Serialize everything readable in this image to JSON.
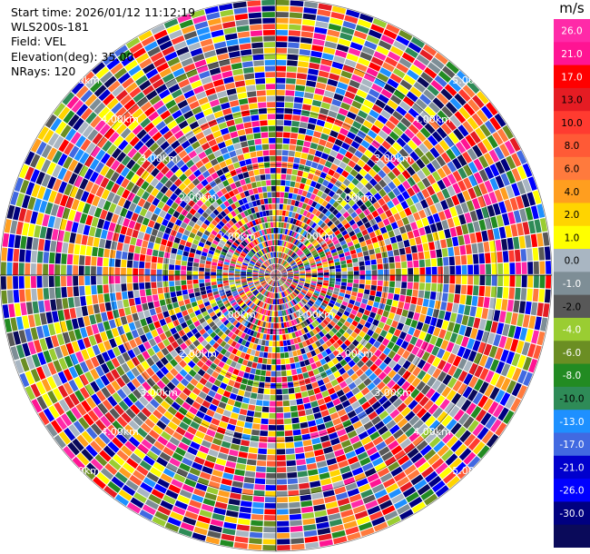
{
  "info": {
    "start_time": "Start time: 2026/01/12 11:12:19",
    "instrument": "WLS200s-181",
    "field": "Field: VEL",
    "elevation": "Elevation(deg): 35.00",
    "nrays": "NRays: 120"
  },
  "colorbar": {
    "unit": "m/s",
    "ticks": [
      "26.0",
      "21.0",
      "17.0",
      "13.0",
      "10.0",
      "8.0",
      "6.0",
      "4.0",
      "2.0",
      "1.0",
      "0.0",
      "-1.0",
      "-2.0",
      "-4.0",
      "-6.0",
      "-8.0",
      "-10.0",
      "-13.0",
      "-17.0",
      "-21.0",
      "-26.0",
      "-30.0"
    ],
    "segment_colors": [
      "#ff2aa8",
      "#ff1493",
      "#ff0000",
      "#e51c23",
      "#ff3b30",
      "#ff5a36",
      "#ff7a3d",
      "#ff9e1f",
      "#ffd400",
      "#ffff00",
      "#a9b6c2",
      "#7e8e96",
      "#585858",
      "#9acd32",
      "#6b8e23",
      "#228b22",
      "#2e8b57",
      "#1e90ff",
      "#4169e1",
      "#0000cd",
      "#0000ff",
      "#000080",
      "#0a0a5a"
    ]
  },
  "chart_data": {
    "type": "ppi",
    "field": "VEL",
    "unit": "m/s",
    "nrays": 120,
    "range_rings_km": [
      1.0,
      2.0,
      3.0,
      4.0,
      5.0
    ],
    "range_ring_labels": [
      "1.00km",
      "2.00km",
      "3.00km",
      "4.00km",
      "5.00km"
    ],
    "color_levels": [
      -30,
      -26,
      -21,
      -17,
      -13,
      -10,
      -8,
      -6,
      -4,
      -2,
      -1,
      0,
      1,
      2,
      4,
      6,
      8,
      10,
      13,
      17,
      21,
      26
    ]
  }
}
